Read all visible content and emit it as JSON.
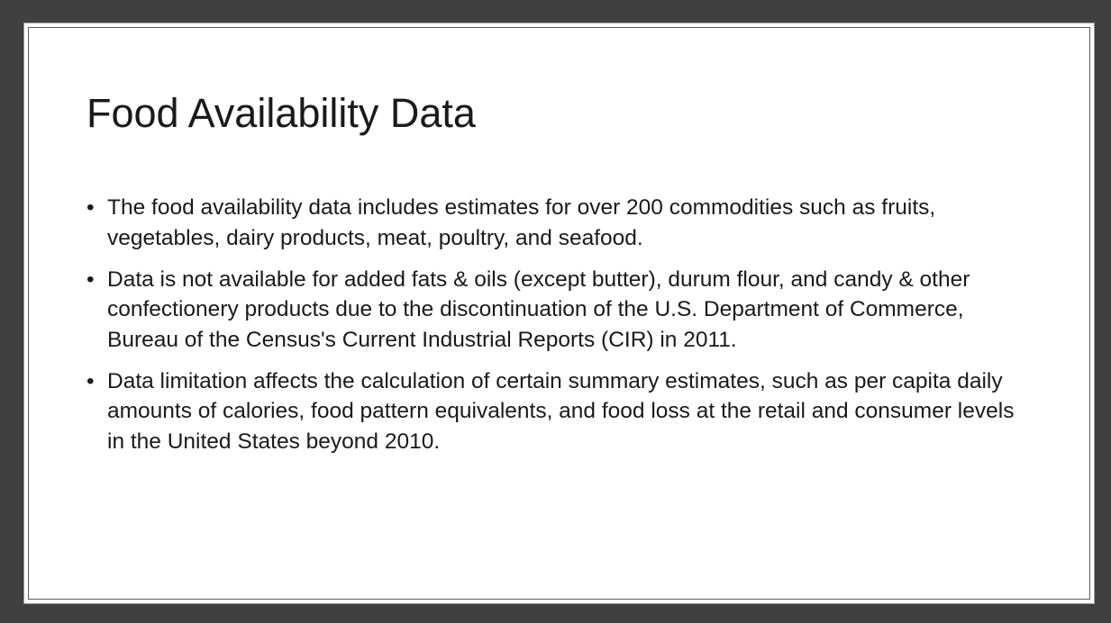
{
  "slide": {
    "title": "Food Availability Data",
    "bullet_glyph": "•",
    "bullets": [
      "The food availability data includes estimates for over 200 commodities such as fruits, vegetables, dairy products, meat, poultry, and seafood.",
      "Data is not available for added fats & oils (except butter), durum flour, and candy & other confectionery products due to the discontinuation of the U.S. Department of Commerce, Bureau of the Census's Current Industrial Reports (CIR) in 2011.",
      "Data limitation affects the calculation of certain summary estimates, such as per capita daily amounts of calories, food pattern equivalents, and food loss at the retail and consumer levels in the United States beyond 2010."
    ]
  },
  "colors": {
    "background": "#404040",
    "slide": "#ffffff",
    "text": "#1a1a1a",
    "frame": "#5a5a5a"
  }
}
